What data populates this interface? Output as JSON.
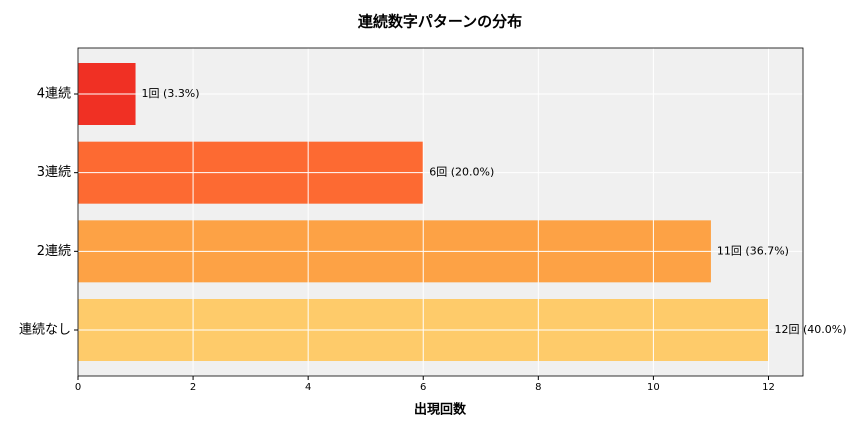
{
  "chart_data": {
    "type": "barh",
    "title": "連続数字パターンの分布",
    "xlabel": "出現回数",
    "categories": [
      "4連続",
      "3連続",
      "2連続",
      "連続なし"
    ],
    "values": [
      1,
      6,
      11,
      12
    ],
    "value_labels": [
      "1回 (3.3%)",
      "6回 (20.0%)",
      "11回 (36.7%)",
      "12回 (40.0%)"
    ],
    "colors": [
      "#f03024",
      "#fd6a32",
      "#fda245",
      "#fecb6a"
    ],
    "xlim": [
      0,
      12.6
    ],
    "xticks": [
      0,
      2,
      4,
      6,
      8,
      10,
      12
    ],
    "grid": true
  }
}
